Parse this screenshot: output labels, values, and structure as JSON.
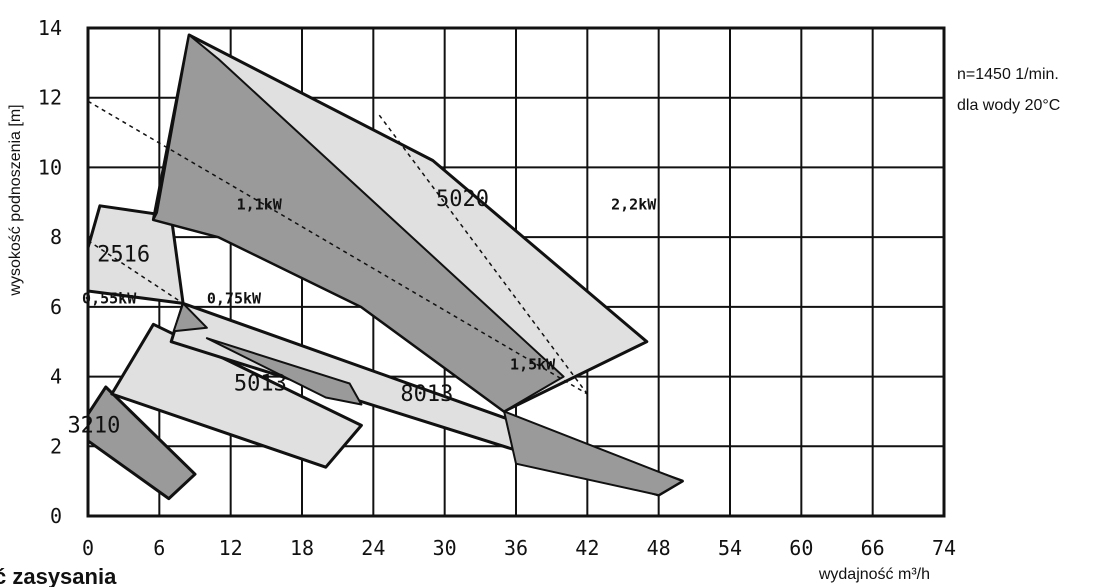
{
  "chart_data": {
    "type": "area",
    "xlabel": "wydajność m³/h",
    "ylabel": "wysokość podnoszenia [m]",
    "x_ticks": [
      "0",
      "6",
      "12",
      "18",
      "24",
      "30",
      "36",
      "42",
      "48",
      "54",
      "60",
      "66",
      "74"
    ],
    "y_ticks": [
      "0",
      "2",
      "4",
      "6",
      "8",
      "10",
      "12",
      "14"
    ],
    "xlim": [
      0,
      74
    ],
    "ylim": [
      0,
      14
    ],
    "grid": true,
    "annotations": {
      "speed": "n=1450 1/min.",
      "water": "dla wody 20°C"
    },
    "regions": [
      {
        "label": "3210",
        "points": [
          [
            -1,
            2.4
          ],
          [
            1.5,
            3.7
          ],
          [
            9,
            1.2
          ],
          [
            6.8,
            0.5
          ]
        ],
        "style": "dark"
      },
      {
        "label": "5013",
        "points": [
          [
            2,
            3.5
          ],
          [
            5.5,
            5.5
          ],
          [
            23,
            2.6
          ],
          [
            20,
            1.4
          ]
        ],
        "style": "light"
      },
      {
        "label": "8013",
        "points": [
          [
            8,
            6.1
          ],
          [
            7,
            5.0
          ],
          [
            48,
            0.6
          ],
          [
            50,
            1.0
          ]
        ],
        "style": "light"
      },
      {
        "label": "2516",
        "points": [
          [
            1,
            8.9
          ],
          [
            7,
            8.6
          ],
          [
            8,
            6.1
          ],
          [
            -1,
            6.5
          ]
        ],
        "style": "light"
      },
      {
        "label": "5020",
        "points": [
          [
            8.5,
            13.8
          ],
          [
            29,
            10.2
          ],
          [
            47,
            5.0
          ],
          [
            35,
            3.0
          ],
          [
            23,
            6.0
          ],
          [
            11,
            8.0
          ],
          [
            5.5,
            8.5
          ]
        ],
        "style": "light"
      }
    ],
    "dark_bands": [
      {
        "points": [
          [
            8.5,
            13.8
          ],
          [
            11,
            13.1
          ],
          [
            40,
            4.0
          ],
          [
            35,
            3.0
          ],
          [
            23,
            6.0
          ],
          [
            11,
            8.0
          ],
          [
            5.5,
            8.5
          ],
          [
            5.8,
            8.7
          ]
        ]
      },
      {
        "points": [
          [
            7.2,
            5.3
          ],
          [
            8,
            6.1
          ],
          [
            10,
            5.4
          ]
        ]
      },
      {
        "points": [
          [
            10,
            5.1
          ],
          [
            22,
            3.8
          ],
          [
            23,
            3.2
          ],
          [
            20,
            3.4
          ]
        ]
      },
      {
        "points": [
          [
            35,
            3.0
          ],
          [
            50,
            1.0
          ],
          [
            48,
            0.6
          ],
          [
            36,
            1.5
          ]
        ]
      }
    ],
    "power_labels": [
      {
        "text": "0,55kW",
        "x": -0.5,
        "y": 6.1
      },
      {
        "text": "0,75kW",
        "x": 10,
        "y": 6.1
      },
      {
        "text": "1,1kW",
        "x": 12.5,
        "y": 8.8
      },
      {
        "text": "1,5kW",
        "x": 35.5,
        "y": 4.2
      },
      {
        "text": "2,2kW",
        "x": 44,
        "y": 8.8
      }
    ],
    "dashed_lines": [
      {
        "from": [
          0,
          11.9
        ],
        "to": [
          42,
          3.5
        ]
      },
      {
        "from": [
          0,
          7.9
        ],
        "to": [
          8,
          6.1
        ]
      },
      {
        "from": [
          24.5,
          11.5
        ],
        "to": [
          42,
          3.5
        ]
      }
    ]
  },
  "footer": {
    "clipped_heading": "ć zasysania"
  }
}
